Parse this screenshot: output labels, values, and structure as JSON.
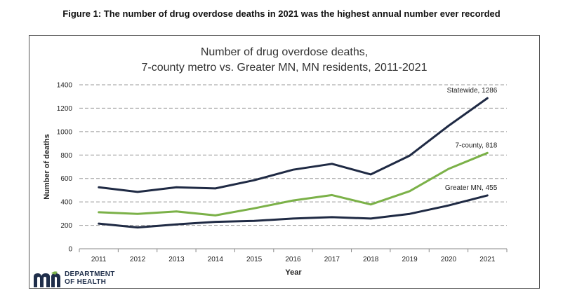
{
  "figure_title": "Figure 1: The number of drug overdose deaths in 2021 was the highest annual number ever recorded",
  "logo": {
    "line1": "DEPARTMENT",
    "line2": "OF HEALTH",
    "mark_color": "#1f2e4a",
    "accent_color": "#7bb148"
  },
  "chart_data": {
    "type": "line",
    "title_line1": "Number of drug overdose deaths,",
    "title_line2": "7-county metro vs. Greater MN, MN residents, 2011-2021",
    "xlabel": "Year",
    "ylabel": "Number of deaths",
    "categories": [
      "2011",
      "2012",
      "2013",
      "2014",
      "2015",
      "2016",
      "2017",
      "2018",
      "2019",
      "2020",
      "2021"
    ],
    "ylim": [
      0,
      1400
    ],
    "yticks": [
      0,
      200,
      400,
      600,
      800,
      1000,
      1200,
      1400
    ],
    "grid": true,
    "series": [
      {
        "name": "Statewide",
        "end_label": "Statewide, 1286",
        "color": "#1f2a44",
        "values": [
          525,
          485,
          525,
          515,
          585,
          675,
          725,
          635,
          795,
          1050,
          1286
        ]
      },
      {
        "name": "7-county",
        "end_label": "7-county, 818",
        "color": "#7bb148",
        "values": [
          312,
          298,
          318,
          285,
          345,
          412,
          458,
          378,
          492,
          682,
          818
        ]
      },
      {
        "name": "Greater MN",
        "end_label": "Greater MN, 455",
        "color": "#1f2a44",
        "values": [
          215,
          182,
          208,
          230,
          238,
          258,
          270,
          258,
          298,
          370,
          455
        ]
      }
    ]
  }
}
